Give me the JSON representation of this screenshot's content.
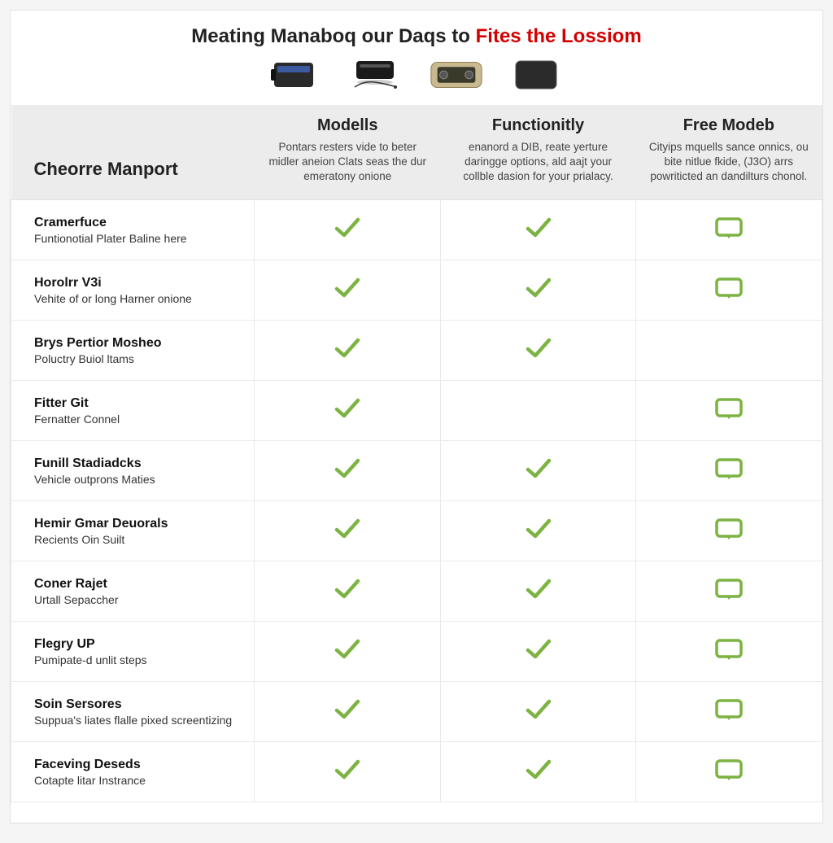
{
  "hero": {
    "title_a": "Meating Manaboq our Daqs to ",
    "title_b": "Fites the Lossiom"
  },
  "colors": {
    "check": "#7cb342",
    "box_stroke": "#7cb342",
    "box_fill": "#ffffff",
    "header_bg": "#ececec",
    "border": "#eaeaea",
    "highlight": "#d40000"
  },
  "table": {
    "row_header": "Cheorre Manport",
    "columns": [
      {
        "title": "Modells",
        "desc": "Pontars resters vide to beter midler aneion Clats seas the dur emeratony onione"
      },
      {
        "title": "Functionitly",
        "desc": "enanord a DIB, reate yerture daringge options, ald aajt your collble dasion for your prialacy."
      },
      {
        "title": "Free Modeb",
        "desc": "Cityips mquells sance onnics, ou bite nitlue fkide, (J3O) arrs powriticted an dandilturs chonol."
      }
    ],
    "rows": [
      {
        "name": "Cramerfuce",
        "sub": "Funtionotial Plater Baline here",
        "cells": [
          "check",
          "check",
          "box"
        ]
      },
      {
        "name": "Horolrr V3i",
        "sub": "Vehite of or long Harner onione",
        "cells": [
          "check",
          "check",
          "box"
        ]
      },
      {
        "name": "Brys Pertior Mosheo",
        "sub": "Poluctry Buiol ltams",
        "cells": [
          "check",
          "check",
          ""
        ]
      },
      {
        "name": "Fitter Git",
        "sub": "Fernatter Connel",
        "cells": [
          "check",
          "",
          "box"
        ]
      },
      {
        "name": "Funill Stadiadcks",
        "sub": "Vehicle outprons Maties",
        "cells": [
          "check",
          "check",
          "box"
        ]
      },
      {
        "name": "Hemir Gmar Deuorals",
        "sub": "Recients Oin Suilt",
        "cells": [
          "check",
          "check",
          "box"
        ]
      },
      {
        "name": "Coner Rajet",
        "sub": "Urtall Sepaccher",
        "cells": [
          "check",
          "check",
          "box"
        ]
      },
      {
        "name": "Flegry UP",
        "sub": "Pumipate-d unlit steps",
        "cells": [
          "check",
          "check",
          "box"
        ]
      },
      {
        "name": "Soin Sersores",
        "sub": "Suppua's liates flalle pixed screentizing",
        "cells": [
          "check",
          "check",
          "box"
        ]
      },
      {
        "name": "Faceving Deseds",
        "sub": "Cotapte litar Instrance",
        "cells": [
          "check",
          "check",
          "box"
        ]
      }
    ]
  }
}
